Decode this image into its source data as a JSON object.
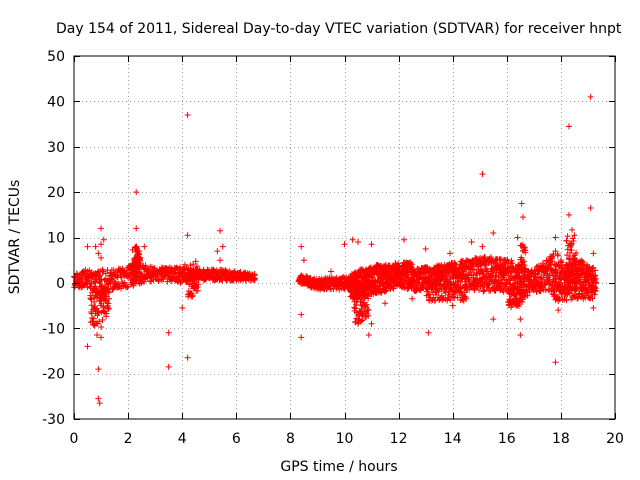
{
  "chart_data": {
    "type": "scatter",
    "title": "Day 154 of 2011, Sidereal Day-to-day VTEC variation (SDTVAR) for receiver hnpt",
    "xlabel": "GPS time / hours",
    "ylabel": "SDTVAR / TECUs",
    "xlim": [
      0,
      20
    ],
    "ylim": [
      -30,
      50
    ],
    "xticks": [
      0,
      2,
      4,
      6,
      8,
      10,
      12,
      14,
      16,
      18,
      20
    ],
    "yticks": [
      -30,
      -20,
      -10,
      0,
      10,
      20,
      30,
      40,
      50
    ],
    "xtick_labels": [
      "0",
      "2",
      "4",
      "6",
      "8",
      "10",
      "12",
      "14",
      "16",
      "18",
      "20"
    ],
    "ytick_labels": [
      "-30",
      "-20",
      "-10",
      "0",
      "10",
      "20",
      "30",
      "40",
      "50"
    ],
    "grid": true,
    "marker": "+",
    "color": "#ff0000",
    "series": [
      {
        "name": "hnpt",
        "bands": [
          {
            "x0": 0.0,
            "x1": 6.7,
            "y_lo": [
              [
                0.0,
                -1.5
              ],
              [
                0.5,
                -1.0
              ],
              [
                1.0,
                -3.0
              ],
              [
                1.5,
                -1.5
              ],
              [
                2.0,
                -1.0
              ],
              [
                2.3,
                -0.5
              ],
              [
                3.0,
                0.5
              ],
              [
                4.0,
                0.0
              ],
              [
                4.5,
                0.5
              ],
              [
                5.5,
                0.5
              ],
              [
                6.0,
                0.5
              ],
              [
                6.7,
                0.5
              ]
            ],
            "y_hi": [
              [
                0.0,
                2.0
              ],
              [
                0.5,
                3.0
              ],
              [
                1.0,
                3.0
              ],
              [
                1.5,
                3.0
              ],
              [
                2.0,
                3.5
              ],
              [
                2.3,
                7.0
              ],
              [
                2.6,
                4.0
              ],
              [
                3.0,
                3.5
              ],
              [
                4.0,
                3.5
              ],
              [
                4.5,
                3.0
              ],
              [
                5.5,
                3.0
              ],
              [
                6.0,
                2.5
              ],
              [
                6.7,
                2.0
              ]
            ],
            "n": 700
          },
          {
            "x0": 8.3,
            "x1": 10.2,
            "y_lo": [
              [
                8.3,
                0.0
              ],
              [
                9.0,
                -1.5
              ],
              [
                10.2,
                -1.5
              ]
            ],
            "y_hi": [
              [
                8.3,
                2.0
              ],
              [
                9.0,
                1.0
              ],
              [
                10.2,
                1.5
              ]
            ],
            "n": 220
          },
          {
            "x0": 10.2,
            "x1": 12.5,
            "y_lo": [
              [
                10.2,
                -3.5
              ],
              [
                11.0,
                -2.5
              ],
              [
                11.5,
                -2.0
              ],
              [
                12.0,
                -1.0
              ],
              [
                12.5,
                -1.5
              ]
            ],
            "y_hi": [
              [
                10.2,
                2.0
              ],
              [
                11.0,
                4.0
              ],
              [
                11.5,
                4.0
              ],
              [
                12.0,
                4.5
              ],
              [
                12.5,
                4.5
              ]
            ],
            "n": 550
          },
          {
            "x0": 12.5,
            "x1": 16.0,
            "y_lo": [
              [
                12.5,
                -2.0
              ],
              [
                13.5,
                -1.0
              ],
              [
                14.5,
                -1.5
              ],
              [
                15.2,
                -2.0
              ],
              [
                16.0,
                -2.0
              ]
            ],
            "y_hi": [
              [
                12.5,
                3.0
              ],
              [
                13.5,
                4.0
              ],
              [
                14.5,
                5.0
              ],
              [
                15.2,
                6.0
              ],
              [
                16.0,
                5.0
              ]
            ],
            "n": 650
          },
          {
            "x0": 16.0,
            "x1": 19.3,
            "y_lo": [
              [
                16.0,
                -2.5
              ],
              [
                16.6,
                -3.5
              ],
              [
                17.0,
                -2.0
              ],
              [
                18.0,
                -2.0
              ],
              [
                18.5,
                -1.5
              ],
              [
                19.3,
                -2.0
              ]
            ],
            "y_hi": [
              [
                16.0,
                5.5
              ],
              [
                16.6,
                3.5
              ],
              [
                17.0,
                3.0
              ],
              [
                17.8,
                7.0
              ],
              [
                18.2,
                4.0
              ],
              [
                18.5,
                6.0
              ],
              [
                19.3,
                3.0
              ]
            ],
            "n": 550
          },
          {
            "x0": 0.6,
            "x1": 1.3,
            "y_lo": [
              [
                0.6,
                -9.0
              ],
              [
                1.0,
                -10.0
              ],
              [
                1.3,
                -6.0
              ]
            ],
            "y_hi": [
              [
                0.6,
                -1.0
              ],
              [
                1.0,
                -1.0
              ],
              [
                1.3,
                -1.0
              ]
            ],
            "n": 90
          },
          {
            "x0": 2.15,
            "x1": 2.45,
            "y_lo": [
              [
                2.15,
                0.0
              ],
              [
                2.45,
                0.0
              ]
            ],
            "y_hi": [
              [
                2.15,
                7.5
              ],
              [
                2.3,
                8.5
              ],
              [
                2.45,
                6.5
              ]
            ],
            "n": 60
          },
          {
            "x0": 4.2,
            "x1": 4.6,
            "y_lo": [
              [
                4.2,
                -3.5
              ],
              [
                4.6,
                -2.5
              ]
            ],
            "y_hi": [
              [
                4.2,
                4.0
              ],
              [
                4.6,
                5.0
              ]
            ],
            "n": 50
          },
          {
            "x0": 10.35,
            "x1": 10.9,
            "y_lo": [
              [
                10.35,
                -9.0
              ],
              [
                10.9,
                -8.5
              ]
            ],
            "y_hi": [
              [
                10.35,
                -1.0
              ],
              [
                10.9,
                -1.0
              ]
            ],
            "n": 70
          },
          {
            "x0": 13.0,
            "x1": 14.5,
            "y_lo": [
              [
                13.0,
                -4.0
              ],
              [
                14.5,
                -4.0
              ]
            ],
            "y_hi": [
              [
                13.0,
                -1.0
              ],
              [
                14.5,
                -1.0
              ]
            ],
            "n": 80
          },
          {
            "x0": 16.05,
            "x1": 16.6,
            "y_lo": [
              [
                16.05,
                -5.5
              ],
              [
                16.6,
                -5.0
              ]
            ],
            "y_hi": [
              [
                16.05,
                -1.0
              ],
              [
                16.6,
                -1.0
              ]
            ],
            "n": 60
          },
          {
            "x0": 17.7,
            "x1": 19.3,
            "y_lo": [
              [
                17.7,
                -4.0
              ],
              [
                19.3,
                -3.5
              ]
            ],
            "y_hi": [
              [
                17.7,
                -1.0
              ],
              [
                19.3,
                -1.0
              ]
            ],
            "n": 80
          },
          {
            "x0": 18.2,
            "x1": 18.6,
            "y_lo": [
              [
                18.2,
                0.0
              ],
              [
                18.6,
                0.0
              ]
            ],
            "y_hi": [
              [
                18.2,
                10.0
              ],
              [
                18.4,
                12.0
              ],
              [
                18.6,
                8.0
              ]
            ],
            "n": 50
          },
          {
            "x0": 16.5,
            "x1": 16.7,
            "y_lo": [
              [
                16.5,
                0.0
              ],
              [
                16.7,
                0.0
              ]
            ],
            "y_hi": [
              [
                16.5,
                9.0
              ],
              [
                16.7,
                8.0
              ]
            ],
            "n": 25
          }
        ],
        "points": [
          {
            "x": 0.5,
            "y": -14.0
          },
          {
            "x": 0.9,
            "y": -19.0
          },
          {
            "x": 0.9,
            "y": -25.5
          },
          {
            "x": 0.95,
            "y": -26.5
          },
          {
            "x": 1.0,
            "y": -12.0
          },
          {
            "x": 0.85,
            "y": -11.5
          },
          {
            "x": 1.0,
            "y": 12.0
          },
          {
            "x": 0.8,
            "y": 8.0
          },
          {
            "x": 1.0,
            "y": 8.5
          },
          {
            "x": 0.5,
            "y": 8.0
          },
          {
            "x": 1.0,
            "y": 5.5
          },
          {
            "x": 0.9,
            "y": 6.5
          },
          {
            "x": 1.1,
            "y": 9.5
          },
          {
            "x": 2.3,
            "y": 20.0
          },
          {
            "x": 2.3,
            "y": 12.0
          },
          {
            "x": 3.5,
            "y": -11.0
          },
          {
            "x": 3.5,
            "y": -18.5
          },
          {
            "x": 4.0,
            "y": -5.5
          },
          {
            "x": 4.2,
            "y": 37.0
          },
          {
            "x": 4.2,
            "y": -16.5
          },
          {
            "x": 4.2,
            "y": 10.5
          },
          {
            "x": 4.1,
            "y": 4.0
          },
          {
            "x": 5.4,
            "y": 11.5
          },
          {
            "x": 5.5,
            "y": 8.0
          },
          {
            "x": 5.3,
            "y": 7.0
          },
          {
            "x": 5.4,
            "y": 5.0
          },
          {
            "x": 8.4,
            "y": -7.0
          },
          {
            "x": 8.4,
            "y": -12.0
          },
          {
            "x": 8.4,
            "y": 8.0
          },
          {
            "x": 8.5,
            "y": 5.0
          },
          {
            "x": 9.5,
            "y": 2.5
          },
          {
            "x": 10.0,
            "y": 8.5
          },
          {
            "x": 10.5,
            "y": 9.0
          },
          {
            "x": 10.5,
            "y": -7.0
          },
          {
            "x": 10.5,
            "y": -9.0
          },
          {
            "x": 10.6,
            "y": -8.5
          },
          {
            "x": 10.9,
            "y": -11.5
          },
          {
            "x": 11.0,
            "y": 8.5
          },
          {
            "x": 11.0,
            "y": -9.0
          },
          {
            "x": 12.2,
            "y": 9.5
          },
          {
            "x": 13.0,
            "y": 7.5
          },
          {
            "x": 13.1,
            "y": -11.0
          },
          {
            "x": 13.9,
            "y": 6.5
          },
          {
            "x": 14.0,
            "y": -5.0
          },
          {
            "x": 14.5,
            "y": 5.0
          },
          {
            "x": 14.7,
            "y": 9.0
          },
          {
            "x": 14.5,
            "y": -3.5
          },
          {
            "x": 15.1,
            "y": 24.0
          },
          {
            "x": 15.1,
            "y": 8.0
          },
          {
            "x": 15.5,
            "y": 11.0
          },
          {
            "x": 15.5,
            "y": -8.0
          },
          {
            "x": 16.4,
            "y": 10.0
          },
          {
            "x": 16.5,
            "y": -8.0
          },
          {
            "x": 16.5,
            "y": -11.5
          },
          {
            "x": 16.55,
            "y": 17.5
          },
          {
            "x": 16.6,
            "y": 14.5
          },
          {
            "x": 16.6,
            "y": 7.0
          },
          {
            "x": 17.8,
            "y": 10.0
          },
          {
            "x": 17.9,
            "y": -4.0
          },
          {
            "x": 17.9,
            "y": -6.0
          },
          {
            "x": 17.8,
            "y": -17.5
          },
          {
            "x": 18.3,
            "y": 34.5
          },
          {
            "x": 18.3,
            "y": 15.0
          },
          {
            "x": 18.5,
            "y": 10.5
          },
          {
            "x": 19.1,
            "y": 41.0
          },
          {
            "x": 19.1,
            "y": 16.5
          },
          {
            "x": 19.2,
            "y": 6.5
          },
          {
            "x": 19.2,
            "y": -5.5
          },
          {
            "x": 12.5,
            "y": -3.5
          },
          {
            "x": 11.5,
            "y": -4.5
          },
          {
            "x": 10.3,
            "y": 9.5
          },
          {
            "x": 2.6,
            "y": 8.0
          }
        ]
      }
    ]
  }
}
